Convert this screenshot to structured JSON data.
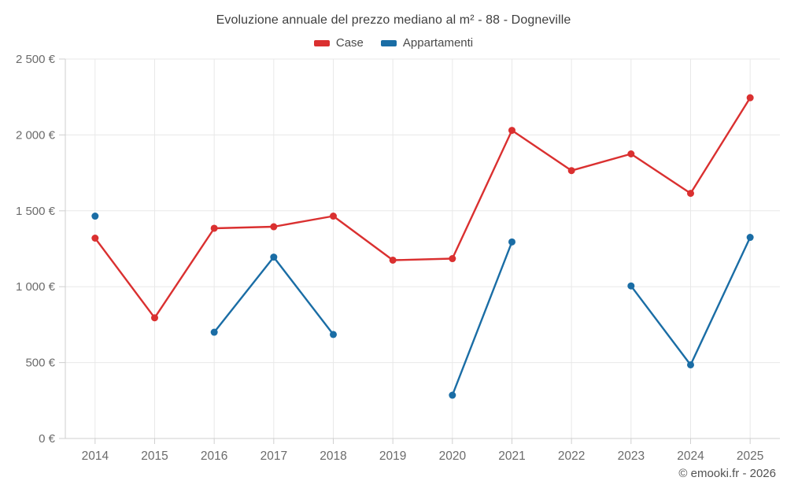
{
  "title": "Evoluzione annuale del prezzo mediano al m² - 88 - Dogneville",
  "footer": "© emooki.fr - 2026",
  "chart_data": {
    "type": "line",
    "title": "Evoluzione annuale del prezzo mediano al m² - 88 - Dogneville",
    "x_categories": [
      "2014",
      "2015",
      "2016",
      "2017",
      "2018",
      "2019",
      "2020",
      "2021",
      "2022",
      "2023",
      "2024",
      "2025"
    ],
    "series": [
      {
        "name": "Case",
        "color": "#da3030",
        "values": [
          1320,
          795,
          1385,
          1395,
          1465,
          1175,
          1185,
          2030,
          1765,
          1875,
          1615,
          2245
        ]
      },
      {
        "name": "Appartamenti",
        "color": "#1a6da5",
        "values": [
          1465,
          null,
          700,
          1195,
          685,
          null,
          285,
          1295,
          null,
          1005,
          485,
          1325
        ]
      }
    ],
    "ylim": [
      0,
      2500
    ],
    "yticks": [
      0,
      500,
      1000,
      1500,
      2000,
      2500
    ],
    "ytick_labels": [
      "0 €",
      "500 €",
      "1 000 €",
      "1 500 €",
      "2 000 €",
      "2 500 €"
    ],
    "xlabel": "",
    "ylabel": "",
    "grid": true,
    "legend_position": "top"
  },
  "style": {
    "grid_color": "#e8e8e8",
    "axis_color": "#cfcfcf",
    "tick_label_color": "#6b6b6b",
    "line_width": 2.4,
    "point_radius": 4.5
  }
}
